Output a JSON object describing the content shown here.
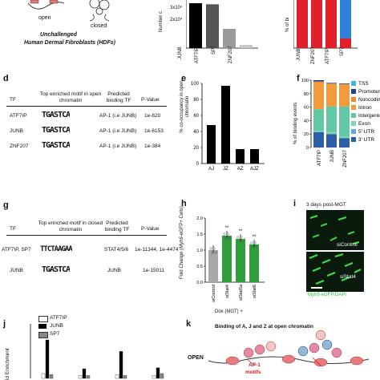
{
  "panel_a": {
    "open_label": "open",
    "closed_label": "closed",
    "title_line1": "Unchallenged",
    "title_line2": "Human Dermal Fibroblasts (HDFs)"
  },
  "panel_b": {
    "ytick_top": "3x10⁴",
    "ytick_mid": "2x10⁴",
    "ylabel": "Number c",
    "categories": [
      "JUNB",
      "ATF7IP",
      "SP7",
      "ZNF207"
    ]
  },
  "panel_c": {
    "ylabel": "% of bi",
    "categories": [
      "JUNB",
      "ZNF207",
      "ATF7IP",
      "SP7"
    ]
  },
  "panel_d": {
    "letter": "d",
    "headers": [
      "TF",
      "Top enriched motif in open chromatin",
      "Predicted binding TF",
      "P-Value"
    ],
    "rows": [
      {
        "tf": "ATF7IP",
        "motif": "TGASTCA",
        "pred": "AP-1 (i.e JUNB)",
        "p": "1e-820"
      },
      {
        "tf": "JUNB",
        "motif": "TGASTCA",
        "pred": "AP-1 (i.e JUNB)",
        "p": "1e-6153"
      },
      {
        "tf": "ZNF207",
        "motif": "TGASTCA",
        "pred": "AP-1 (i.e JUNB)",
        "p": "1e-384"
      }
    ]
  },
  "panel_e": {
    "letter": "e",
    "ylabel": "% co-occupancy in open chromatin",
    "yticks": [
      "0",
      "20",
      "40",
      "60",
      "80",
      "100"
    ]
  },
  "panel_f": {
    "letter": "f",
    "ylabel": "% of binding events",
    "yticks": [
      "0",
      "20",
      "40",
      "60",
      "80",
      "100"
    ],
    "legend": [
      "TSS",
      "Promoter",
      "Noncoding",
      "Intron",
      "Intergenic",
      "Exon",
      "5' UTR",
      "3' UTR"
    ]
  },
  "panel_g": {
    "letter": "g",
    "headers": [
      "TF",
      "Top enriched motif in closed chromatin",
      "Predicted binding TF",
      "P-Value"
    ],
    "rows": [
      {
        "tf": "ATF7IP, SP7",
        "motif": "TTCTAAGAA",
        "pred": "STAT4/5/6",
        "p": "1e-11344, 1e-4474"
      },
      {
        "tf": "JUNB",
        "motif": "TGASTCA",
        "pred": "JUNB",
        "p": "1e-15011"
      }
    ]
  },
  "panel_h": {
    "letter": "h",
    "ylabel_prefix": "Fold Change (",
    "ylabel_italic": "Myh6",
    "ylabel_suffix": "-eGFP+ Cells)",
    "yticks": [
      "0.0",
      "0.5",
      "1.0",
      "1.5",
      "2.0"
    ],
    "xlabel": "Dox (MGT) +",
    "sig": [
      "**",
      "**",
      "**"
    ]
  },
  "panel_i": {
    "letter": "i",
    "title": "3 days post-MGT",
    "label_top": "siControl",
    "label_bottom": "siStat4",
    "caption": "Myh6-eGFP/DAPI"
  },
  "panel_j": {
    "letter": "j",
    "ylabel": "ld Enrichment",
    "legend": [
      "ATF7IP",
      "JUNB",
      "SP7"
    ]
  },
  "panel_k": {
    "letter": "k",
    "title": "Binding of A, J and Z at open chromatin",
    "open_label": "OPEN",
    "ap1_line1": "AP-1",
    "ap1_line2": "motifs"
  },
  "colors": {
    "bar_black": "#000000",
    "bar_dark": "#555555",
    "bar_gray": "#9a9a9a",
    "bar_light": "#c8c8c8",
    "green": "#2f9e3a",
    "red_stack": "#e0202a",
    "blue_stack": "#2f7fd8",
    "tss": "#3fb6d8",
    "promoter": "#1f3f8f",
    "noncoding": "#f08a2a",
    "intron": "#f39a3a",
    "intergenic": "#60c9a3",
    "exon": "#7fd6b5",
    "utr5": "#5fa8e0",
    "utr3": "#2a5fa8",
    "nucleosome": "#e87b7b",
    "protein_pink": "#e58aa6"
  },
  "chart_data": [
    {
      "panel": "b",
      "type": "bar",
      "categories": [
        "JUNB",
        "ATF7IP",
        "SP7",
        "ZNF207"
      ],
      "values": [
        42000,
        41000,
        18000,
        3000
      ],
      "ylim": [
        0,
        45000
      ],
      "ylabel": "Number c"
    },
    {
      "panel": "c",
      "type": "bar",
      "categories": [
        "JUNB",
        "ZNF207",
        "ATF7IP",
        "SP7"
      ],
      "series": [
        {
          "values": [
            100,
            100,
            100,
            20
          ]
        },
        {
          "values": [
            0,
            0,
            0,
            80
          ]
        }
      ],
      "ylim": [
        0,
        100
      ],
      "ylabel": "% of bi"
    },
    {
      "panel": "e",
      "type": "bar",
      "categories": [
        "AJ",
        "JZ",
        "AZ",
        "AJZ"
      ],
      "values": [
        48,
        97,
        18,
        18
      ],
      "ylim": [
        0,
        100
      ],
      "ylabel": "% co-occupancy in open chromatin"
    },
    {
      "panel": "f",
      "type": "bar",
      "categories": [
        "ATF7IP",
        "JUNB",
        "ZNF207"
      ],
      "series": [
        {
          "name": "TSS",
          "values": [
            0,
            0,
            0
          ]
        },
        {
          "name": "Promoter",
          "values": [
            2,
            1,
            1
          ]
        },
        {
          "name": "Noncoding",
          "values": [
            1,
            1,
            1
          ]
        },
        {
          "name": "Intron",
          "values": [
            40,
            33,
            32
          ]
        },
        {
          "name": "Intergenic",
          "values": [
            32,
            38,
            45
          ]
        },
        {
          "name": "Exon",
          "values": [
            2,
            3,
            2
          ]
        },
        {
          "name": "5' UTR",
          "values": [
            0,
            0,
            0
          ]
        },
        {
          "name": "3' UTR",
          "values": [
            23,
            20,
            14
          ]
        }
      ],
      "ylim": [
        0,
        100
      ],
      "ylabel": "% of binding events"
    },
    {
      "panel": "h",
      "type": "bar",
      "categories": [
        "siControl",
        "siStat4",
        "siStat5a",
        "siStat6"
      ],
      "values": [
        1.0,
        1.45,
        1.35,
        1.18
      ],
      "ylim": [
        0,
        2.0
      ],
      "ylabel": "Fold Change (Myh6-eGFP+ Cells)",
      "xlabel": "Dox (MGT) +"
    },
    {
      "panel": "j",
      "type": "bar",
      "series": [
        {
          "name": "ATF7IP",
          "values": [
            0.5,
            0.3,
            0.4,
            0.3
          ]
        },
        {
          "name": "JUNB",
          "values": [
            4.0,
            1.0,
            2.8,
            1.1
          ]
        },
        {
          "name": "SP7",
          "values": [
            0.4,
            0.3,
            0.3,
            0.5
          ]
        }
      ],
      "ylabel": "ld Enrichment"
    }
  ]
}
